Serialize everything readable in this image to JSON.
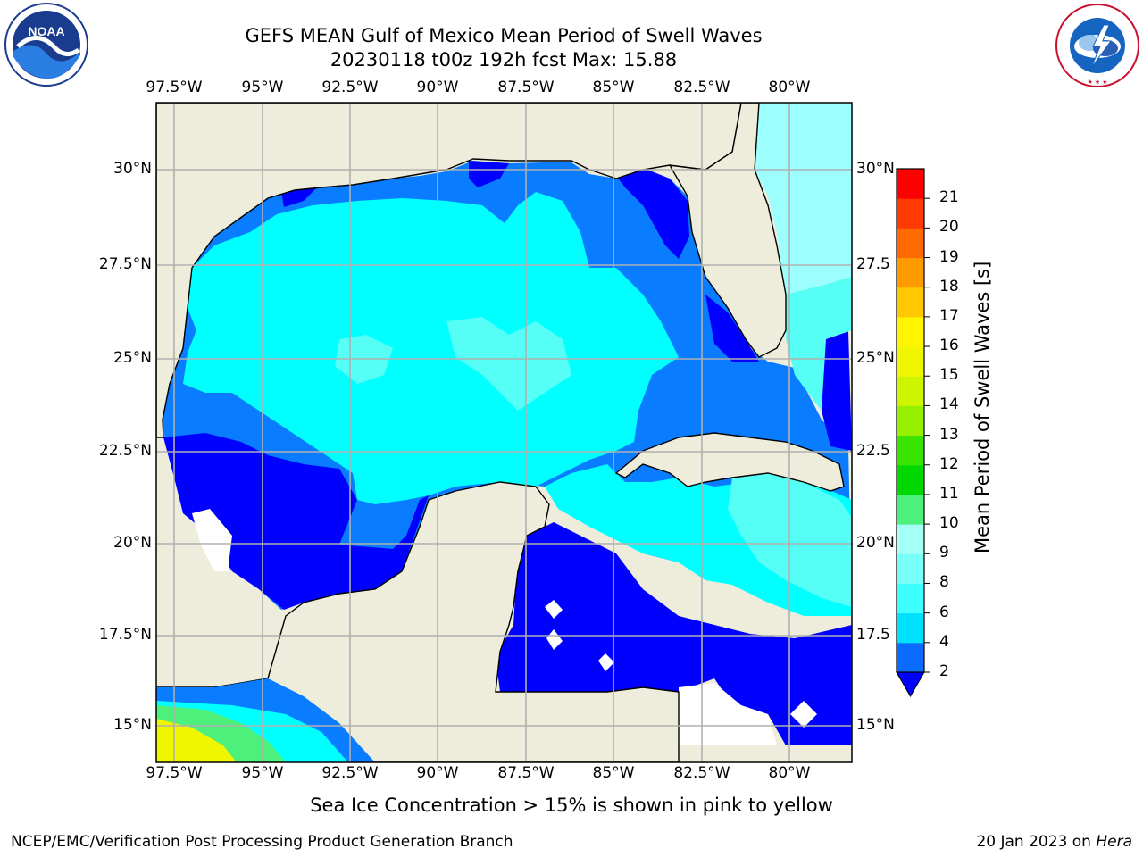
{
  "title": {
    "line1": "GEFS MEAN Gulf of Mexico Mean Period of Swell Waves",
    "line2": "20230118 t00z 192h fcst   Max: 15.88"
  },
  "logos": {
    "left": {
      "icon": "noaa-logo",
      "text": "NOAA"
    },
    "right": {
      "icon": "nws-logo",
      "text": "NATIONAL WEATHER SERVICE"
    }
  },
  "map": {
    "lon_labels": [
      "97.5°W",
      "95°W",
      "92.5°W",
      "90°W",
      "87.5°W",
      "85°W",
      "82.5°W",
      "80°W"
    ],
    "lat_labels_left": [
      "30°N",
      "27.5°N",
      "25°N",
      "22.5°N",
      "20°N",
      "17.5°N",
      "15°N"
    ],
    "lat_labels_right": [
      "30°N",
      "27.5",
      "25°N",
      "22.5",
      "20°N",
      "17.5",
      "15°N"
    ],
    "colors": {
      "land": "#eeeddc",
      "water_1": "#0000ff",
      "water_2": "#0a7cff",
      "water_3": "#00ffff",
      "water_4": "#55fff5",
      "water_5": "#9cfffe",
      "nodata": "#ffffff"
    }
  },
  "colorbar": {
    "label": "Mean Period of Swell Waves [s]",
    "ticks": [
      "2",
      "4",
      "6",
      "8",
      "9",
      "10",
      "11",
      "12",
      "13",
      "14",
      "15",
      "16",
      "17",
      "18",
      "19",
      "20",
      "21"
    ],
    "colors": [
      "#0a6cff",
      "#00e1ff",
      "#3dffff",
      "#77fff8",
      "#a6fff6",
      "#4df07a",
      "#00d800",
      "#38e400",
      "#96f000",
      "#cdf500",
      "#f0f500",
      "#fff500",
      "#ffc800",
      "#ff9a00",
      "#ff6a00",
      "#ff3a00",
      "#ff0000"
    ],
    "extend_color": "#0000ff"
  },
  "footer": {
    "note": "Sea Ice Concentration > 15% is shown in pink to yellow",
    "left": "NCEP/EMC/Verification Post Processing Product Generation Branch",
    "right_date": "20 Jan 2023 on ",
    "right_host": "Hera"
  }
}
